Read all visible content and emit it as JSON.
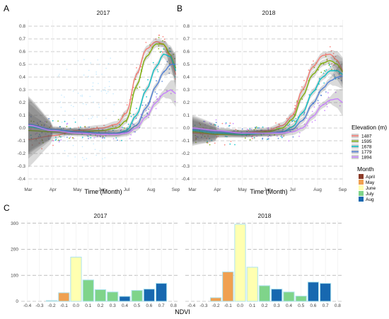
{
  "panels": {
    "a": "A",
    "b": "B",
    "c": "C"
  },
  "colors": {
    "elevation": {
      "1487": "#f8766d",
      "1595": "#7cae00",
      "1678": "#00bfc4",
      "1779": "#4a7bd6",
      "1894": "#c77cff"
    },
    "month": {
      "April": "#8c3b28",
      "May": "#f0a050",
      "June": "#ffffb0",
      "July": "#7fd48a",
      "Aug": "#1768b0"
    },
    "points": [
      "#f8766d",
      "#7cae00",
      "#00bfc4",
      "#4a7bd6",
      "#c77cff",
      "#bfe8ff"
    ]
  },
  "legend_elevation": {
    "title": "Elevation (m)",
    "items": [
      "1487",
      "1595",
      "1678",
      "1779",
      "1894"
    ]
  },
  "legend_month": {
    "title": "Month",
    "items": [
      "April",
      "May",
      "June",
      "July",
      "Aug"
    ]
  },
  "chart_data": [
    {
      "type": "scatter",
      "title": "2017",
      "xlabel": "Time (Month)",
      "ylabel": "",
      "x_ticks": [
        "Mar",
        "Apr",
        "May",
        "Jun",
        "Jul",
        "Aug",
        "Sep"
      ],
      "y_ticks": [
        "-0.4",
        "-0.3",
        "-0.2",
        "-0.1",
        "0.0",
        "0.1",
        "0.2",
        "0.3",
        "0.4",
        "0.5",
        "0.6",
        "0.7",
        "0.8"
      ],
      "xlim": [
        0,
        6.1
      ],
      "ylim": [
        -0.45,
        0.85
      ],
      "smooth": true,
      "grid": true,
      "series": [
        {
          "name": "1487",
          "x": [
            0,
            1,
            2,
            3,
            3.6,
            4,
            4.4,
            4.8,
            5.2,
            5.5,
            5.8,
            6
          ],
          "y": [
            -0.09,
            -0.06,
            -0.02,
            0.0,
            0.03,
            0.12,
            0.42,
            0.62,
            0.68,
            0.66,
            0.55,
            0.42
          ]
        },
        {
          "name": "1595",
          "x": [
            0,
            1,
            2,
            3,
            3.6,
            4,
            4.4,
            4.8,
            5.2,
            5.5,
            5.8,
            6
          ],
          "y": [
            -0.02,
            -0.03,
            -0.03,
            -0.02,
            0.0,
            0.06,
            0.33,
            0.56,
            0.66,
            0.66,
            0.57,
            0.47
          ]
        },
        {
          "name": "1678",
          "x": [
            0,
            1,
            2,
            3,
            3.6,
            4,
            4.4,
            4.8,
            5.2,
            5.5,
            5.8,
            6
          ],
          "y": [
            0.01,
            -0.02,
            -0.03,
            -0.04,
            -0.04,
            -0.02,
            0.1,
            0.3,
            0.48,
            0.58,
            0.56,
            0.45
          ]
        },
        {
          "name": "1779",
          "x": [
            0,
            1,
            2,
            3,
            3.6,
            4,
            4.4,
            4.8,
            5.2,
            5.5,
            5.8,
            6
          ],
          "y": [
            0.03,
            -0.01,
            -0.03,
            -0.04,
            -0.04,
            -0.03,
            0.02,
            0.16,
            0.33,
            0.44,
            0.5,
            0.5
          ]
        },
        {
          "name": "1894",
          "x": [
            0,
            1,
            2,
            3,
            3.6,
            4,
            4.4,
            4.8,
            5.2,
            5.5,
            5.8,
            6
          ],
          "y": [
            0.02,
            -0.02,
            -0.04,
            -0.05,
            -0.05,
            -0.04,
            0.0,
            0.09,
            0.2,
            0.27,
            0.3,
            0.27
          ]
        }
      ]
    },
    {
      "type": "scatter",
      "title": "2018",
      "xlabel": "Time (Month)",
      "ylabel": "",
      "x_ticks": [
        "Mar",
        "Apr",
        "May",
        "Jun",
        "Jul",
        "Aug",
        "Sep"
      ],
      "y_ticks": [
        "-0.4",
        "-0.3",
        "-0.2",
        "-0.1",
        "0.0",
        "0.1",
        "0.2",
        "0.3",
        "0.4",
        "0.5",
        "0.6",
        "0.7",
        "0.8"
      ],
      "xlim": [
        0,
        6.1
      ],
      "ylim": [
        -0.45,
        0.85
      ],
      "smooth": true,
      "grid": true,
      "series": [
        {
          "name": "1487",
          "x": [
            0,
            1,
            2,
            3,
            3.6,
            4,
            4.4,
            4.8,
            5.2,
            5.5,
            5.8,
            6
          ],
          "y": [
            -0.04,
            -0.05,
            -0.04,
            -0.02,
            0.02,
            0.1,
            0.3,
            0.48,
            0.57,
            0.58,
            0.53,
            0.45
          ]
        },
        {
          "name": "1595",
          "x": [
            0,
            1,
            2,
            3,
            3.6,
            4,
            4.4,
            4.8,
            5.2,
            5.5,
            5.8,
            6
          ],
          "y": [
            -0.03,
            -0.05,
            -0.05,
            -0.03,
            0.0,
            0.07,
            0.25,
            0.42,
            0.51,
            0.53,
            0.5,
            0.44
          ]
        },
        {
          "name": "1678",
          "x": [
            0,
            1,
            2,
            3,
            3.6,
            4,
            4.4,
            4.8,
            5.2,
            5.5,
            5.8,
            6
          ],
          "y": [
            -0.02,
            -0.04,
            -0.05,
            -0.04,
            -0.03,
            0.01,
            0.12,
            0.28,
            0.4,
            0.45,
            0.45,
            0.42
          ]
        },
        {
          "name": "1779",
          "x": [
            0,
            1,
            2,
            3,
            3.6,
            4,
            4.4,
            4.8,
            5.2,
            5.5,
            5.8,
            6
          ],
          "y": [
            -0.01,
            -0.03,
            -0.04,
            -0.04,
            -0.03,
            -0.01,
            0.06,
            0.19,
            0.31,
            0.37,
            0.4,
            0.41
          ]
        },
        {
          "name": "1894",
          "x": [
            0,
            1,
            2,
            3,
            3.6,
            4,
            4.4,
            4.8,
            5.2,
            5.5,
            5.8,
            6
          ],
          "y": [
            0.0,
            -0.02,
            -0.04,
            -0.04,
            -0.04,
            -0.03,
            0.0,
            0.09,
            0.18,
            0.22,
            0.23,
            0.2
          ]
        }
      ]
    },
    {
      "type": "bar",
      "title": "2017",
      "xlabel": "NDVI",
      "ylabel": "",
      "categories": [
        "-0.2",
        "-0.1",
        "0.0",
        "0.1",
        "0.2",
        "0.3",
        "0.4",
        "0.5",
        "0.6",
        "0.7"
      ],
      "values": [
        3,
        33,
        170,
        82,
        45,
        36,
        19,
        42,
        47,
        69
      ],
      "bar_months": [
        "May",
        "May",
        "June",
        "July",
        "July",
        "July",
        "Aug",
        "July",
        "Aug",
        "Aug"
      ],
      "x_ticks": [
        "-0.4",
        "-0.3",
        "-0.2",
        "-0.1",
        "0.0",
        "0.1",
        "0.2",
        "0.3",
        "0.4",
        "0.5",
        "0.6",
        "0.7",
        "0.8"
      ],
      "y_ticks": [
        "0",
        "100",
        "200",
        "300"
      ],
      "xlim": [
        -0.45,
        0.85
      ],
      "ylim": [
        0,
        310
      ]
    },
    {
      "type": "bar",
      "title": "2018",
      "xlabel": "NDVI",
      "ylabel": "",
      "categories": [
        "-0.2",
        "-0.1",
        "0.0",
        "0.1",
        "0.2",
        "0.3",
        "0.4",
        "0.5",
        "0.6",
        "0.7"
      ],
      "values": [
        14,
        113,
        296,
        131,
        60,
        47,
        36,
        20,
        74,
        69
      ],
      "bar_months": [
        "May",
        "May",
        "June",
        "June",
        "July",
        "Aug",
        "July",
        "July",
        "Aug",
        "Aug"
      ],
      "x_ticks": [
        "-0.4",
        "-0.3",
        "-0.2",
        "-0.1",
        "0.0",
        "0.1",
        "0.2",
        "0.3",
        "0.4",
        "0.5",
        "0.6",
        "0.7",
        "0.8"
      ],
      "y_ticks": [
        "0",
        "100",
        "200",
        "300"
      ],
      "xlim": [
        -0.45,
        0.85
      ],
      "ylim": [
        0,
        310
      ]
    }
  ]
}
